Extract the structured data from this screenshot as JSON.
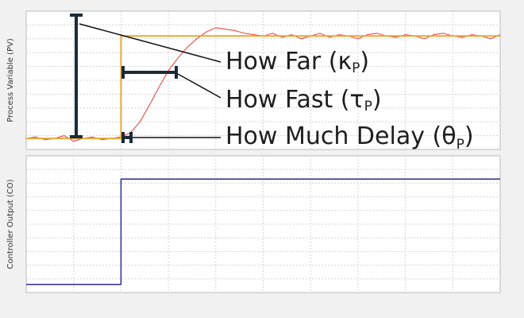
{
  "chart_data": [
    {
      "type": "line",
      "y_label": "Process Variable (PV)",
      "xlim": [
        0,
        100
      ],
      "ylim": [
        0,
        100
      ],
      "grid": true,
      "series": [
        {
          "color": "#e63a2e",
          "width": 1,
          "x": [
            0,
            2,
            4,
            6,
            8,
            10,
            12,
            14,
            16,
            18,
            20,
            22,
            24,
            26,
            28,
            30,
            32,
            34,
            36,
            38,
            40,
            42,
            44,
            46,
            48,
            50,
            52,
            54,
            56,
            58,
            60,
            62,
            64,
            66,
            68,
            70,
            72,
            74,
            76,
            78,
            80,
            82,
            84,
            86,
            88,
            90,
            92,
            94,
            96,
            98,
            100
          ],
          "values": [
            8,
            9,
            7,
            8,
            10,
            6,
            8,
            9,
            7,
            8,
            9,
            12,
            20,
            32,
            45,
            57,
            66,
            74,
            80,
            85,
            88,
            87,
            86,
            84,
            83,
            82,
            84,
            81,
            83,
            80,
            82,
            84,
            81,
            83,
            82,
            80,
            83,
            84,
            82,
            81,
            83,
            82,
            80,
            83,
            84,
            82,
            81,
            83,
            82,
            80,
            83
          ]
        },
        {
          "color": "#e8a838",
          "width": 2,
          "x": [
            0,
            20,
            20,
            100
          ],
          "values": [
            8,
            8,
            82,
            82
          ]
        }
      ],
      "annotations": [
        {
          "text": "How Far (κ",
          "subscript": "P",
          "suffix": ")"
        },
        {
          "text": "How Fast (τ",
          "subscript": "P",
          "suffix": ")"
        },
        {
          "text": "How Much Delay (θ",
          "subscript": "P",
          "suffix": ")"
        }
      ]
    },
    {
      "type": "line",
      "y_label": "Controller Output (CO)",
      "xlim": [
        0,
        100
      ],
      "ylim": [
        0,
        100
      ],
      "grid": true,
      "series": [
        {
          "color": "#2a2a9c",
          "width": 1.5,
          "x": [
            0,
            20,
            20,
            100
          ],
          "values": [
            6,
            6,
            83,
            83
          ]
        }
      ]
    }
  ]
}
